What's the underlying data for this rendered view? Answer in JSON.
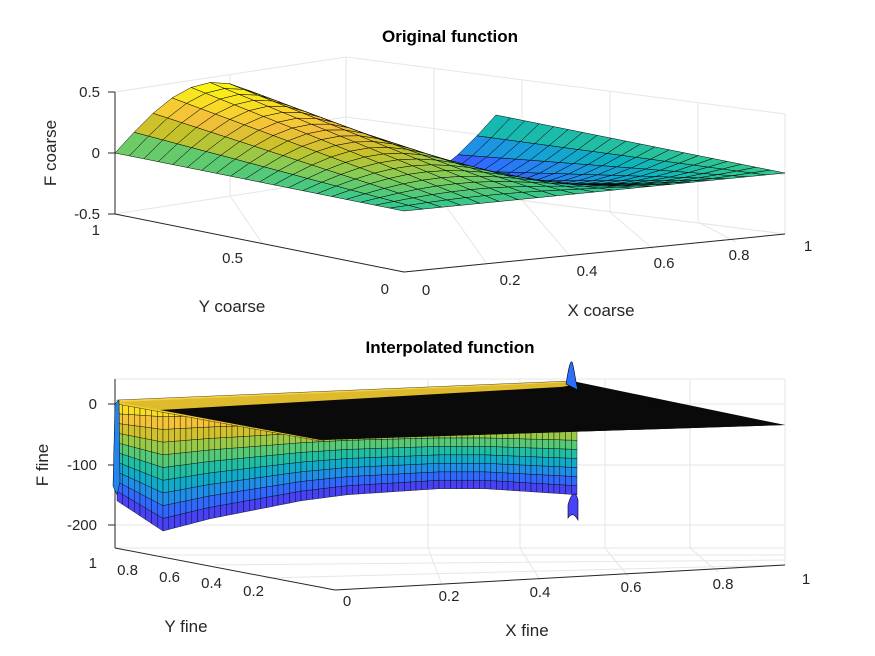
{
  "chart_data": [
    {
      "type": "surface",
      "title": "Original function",
      "xlabel": "X coarse",
      "ylabel": "Y coarse",
      "zlabel": "F coarse",
      "xlim": [
        0,
        1
      ],
      "ylim": [
        0,
        1
      ],
      "zlim": [
        -0.5,
        0.5
      ],
      "x_ticks": [
        "0",
        "0.2",
        "0.4",
        "0.6",
        "0.8",
        "1"
      ],
      "y_ticks": [
        "0",
        "0.5",
        "1"
      ],
      "z_ticks": [
        "-0.5",
        "0",
        "0.5"
      ],
      "colormap": "parula",
      "grid": true,
      "surface": {
        "description_of_values": "F = 0.5*sin(2*pi*x)*y approximately",
        "x": [
          0,
          0.05,
          0.1,
          0.15,
          0.2,
          0.25,
          0.3,
          0.35,
          0.4,
          0.45,
          0.5,
          0.55,
          0.6,
          0.65,
          0.7,
          0.75,
          0.8,
          0.85,
          0.9,
          0.95,
          1
        ],
        "y": [
          0,
          0.05,
          0.1,
          0.15,
          0.2,
          0.25,
          0.3,
          0.35,
          0.4,
          0.45,
          0.5,
          0.55,
          0.6,
          0.65,
          0.7,
          0.75,
          0.8,
          0.85,
          0.9,
          0.95,
          1
        ]
      }
    },
    {
      "type": "surface",
      "title": "Interpolated function",
      "xlabel": "X fine",
      "ylabel": "Y fine",
      "zlabel": "F fine",
      "xlim": [
        0,
        1
      ],
      "ylim": [
        0,
        1
      ],
      "zlim": [
        -230,
        40
      ],
      "x_ticks": [
        "0",
        "0.2",
        "0.4",
        "0.6",
        "0.8",
        "1"
      ],
      "y_ticks": [
        "0.2",
        "0.4",
        "0.6",
        "0.8",
        "1"
      ],
      "z_ticks": [
        "-200",
        "-100",
        "0"
      ],
      "colormap": "parula",
      "grid": true,
      "profile": {
        "y": [
          0,
          0.1,
          0.2,
          0.3,
          0.4,
          0.5,
          0.6,
          0.7,
          0.8,
          0.9,
          1
        ],
        "min_z": [
          -150,
          -145,
          -140,
          -140,
          -145,
          -150,
          -160,
          -175,
          -190,
          -210,
          -160
        ],
        "cutoff_x": 0.6
      }
    }
  ],
  "colors": {
    "parula": [
      "#3e26a8",
      "#4743f8",
      "#2d6ffd",
      "#1b98e0",
      "#0db4bc",
      "#33c78e",
      "#81cc59",
      "#c7c229",
      "#f3bf3b",
      "#f9dc26",
      "#f9fb0e"
    ]
  }
}
